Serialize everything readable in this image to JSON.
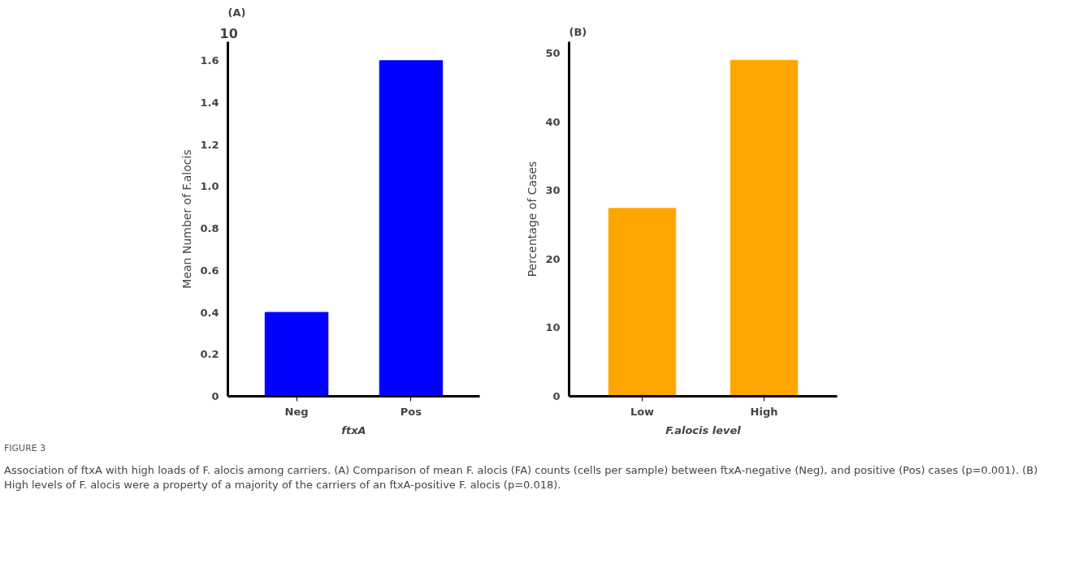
{
  "chart_data": [
    {
      "type": "bar",
      "title": "(A)",
      "categories": [
        "Neg",
        "Pos"
      ],
      "values": [
        0.4,
        1.6
      ],
      "color": "#0000ff",
      "xlabel": "ftxA",
      "ylabel": "Mean Number of F.alocis",
      "ylim": [
        0,
        1.69
      ],
      "yticks": [
        0,
        0.2,
        0.4,
        0.6,
        0.8,
        {
          "value": 1.0,
          "label": "1.0"
        },
        1.2,
        1.4,
        1.6
      ],
      "grid": false,
      "annotations": [
        "10"
      ]
    },
    {
      "type": "bar",
      "title": "(B)",
      "categories": [
        "Low",
        "High"
      ],
      "values": [
        27.4,
        49.0
      ],
      "color": "#ffa500",
      "xlabel": "F.alocis level",
      "ylabel": "Percentage of Cases",
      "ylim": [
        0,
        51.7
      ],
      "yticks": [
        0,
        10,
        20,
        30,
        40,
        50
      ],
      "grid": false,
      "annotations": [
        "FIGURE 3",
        "Association of ftxA with high loads of F. alocis among carriers. (A) Comparison of mean F. alocis (FA) counts (cells per sample) between ftxA-negative (Neg), and positive (Pos) cases (p=0.001). (B) High levels of F. alocis were a property of a majority of the carriers of an ftxA-positive F. alocis (p=0.018)."
      ]
    }
  ]
}
